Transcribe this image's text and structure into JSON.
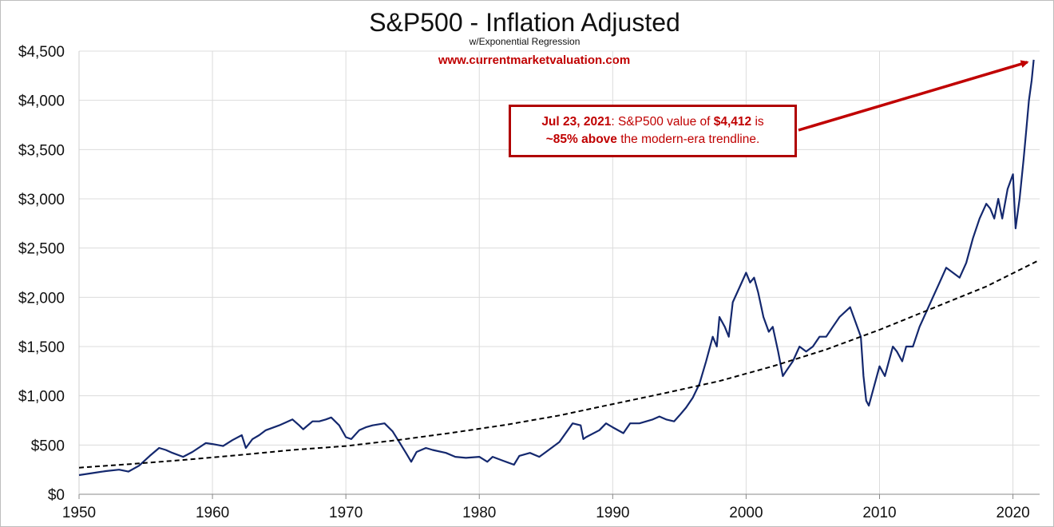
{
  "chart_data": {
    "type": "line",
    "title": "S&P500 - Inflation Adjusted",
    "subtitle": "w/Exponential Regression",
    "website": "www.currentmarketvaluation.com",
    "xlabel": "",
    "ylabel": "",
    "xlim": [
      1950,
      2022
    ],
    "ylim": [
      0,
      4500
    ],
    "x_ticks": [
      "1950",
      "1960",
      "1970",
      "1980",
      "1990",
      "2000",
      "2010",
      "2020"
    ],
    "y_ticks": [
      "$0",
      "$500",
      "$1,000",
      "$1,500",
      "$2,000",
      "$2,500",
      "$3,000",
      "$3,500",
      "$4,000",
      "$4,500"
    ],
    "grid": true,
    "series": [
      {
        "name": "S&P500 (inflation adjusted)",
        "color": "#14286e",
        "style": "solid",
        "x": [
          1950.0,
          1951.0,
          1952.0,
          1953.0,
          1953.7,
          1954.5,
          1955.3,
          1956.0,
          1956.5,
          1957.0,
          1957.8,
          1958.5,
          1959.5,
          1960.0,
          1960.8,
          1961.5,
          1962.2,
          1962.5,
          1963.0,
          1963.5,
          1964.0,
          1965.0,
          1965.5,
          1966.0,
          1966.5,
          1966.8,
          1967.5,
          1968.0,
          1968.5,
          1968.9,
          1969.5,
          1970.0,
          1970.4,
          1971.0,
          1971.5,
          1972.0,
          1972.9,
          1973.5,
          1974.0,
          1974.5,
          1974.9,
          1975.3,
          1976.0,
          1976.5,
          1977.5,
          1978.2,
          1979.0,
          1980.0,
          1980.6,
          1981.0,
          1981.8,
          1982.6,
          1983.0,
          1983.8,
          1984.5,
          1985.0,
          1986.0,
          1987.0,
          1987.6,
          1987.8,
          1988.0,
          1989.0,
          1989.5,
          1990.0,
          1990.8,
          1991.3,
          1992.0,
          1993.0,
          1993.5,
          1994.0,
          1994.6,
          1995.0,
          1995.5,
          1996.0,
          1996.5,
          1997.0,
          1997.5,
          1997.8,
          1998.0,
          1998.4,
          1998.7,
          1999.0,
          1999.5,
          2000.0,
          2000.3,
          2000.6,
          2000.9,
          2001.3,
          2001.7,
          2002.0,
          2002.4,
          2002.75,
          2003.0,
          2003.5,
          2004.0,
          2004.5,
          2005.0,
          2005.5,
          2006.0,
          2006.5,
          2007.0,
          2007.4,
          2007.8,
          2008.2,
          2008.6,
          2008.8,
          2009.0,
          2009.2,
          2009.6,
          2010.0,
          2010.4,
          2010.7,
          2011.0,
          2011.3,
          2011.7,
          2012.0,
          2012.5,
          2013.0,
          2013.5,
          2014.0,
          2014.5,
          2015.0,
          2015.5,
          2016.0,
          2016.5,
          2017.0,
          2017.5,
          2018.0,
          2018.3,
          2018.6,
          2018.9,
          2019.2,
          2019.6,
          2020.0,
          2020.2,
          2020.5,
          2020.8,
          2021.0,
          2021.2,
          2021.4,
          2021.56
        ],
        "y": [
          195,
          215,
          235,
          250,
          230,
          290,
          390,
          470,
          450,
          420,
          380,
          430,
          520,
          510,
          490,
          550,
          600,
          470,
          560,
          600,
          650,
          700,
          730,
          760,
          700,
          660,
          740,
          740,
          760,
          780,
          700,
          580,
          560,
          650,
          680,
          700,
          720,
          640,
          530,
          420,
          330,
          430,
          470,
          450,
          420,
          380,
          370,
          380,
          330,
          380,
          340,
          300,
          390,
          420,
          380,
          430,
          530,
          720,
          700,
          560,
          580,
          650,
          720,
          680,
          620,
          720,
          720,
          760,
          790,
          760,
          740,
          800,
          880,
          980,
          1120,
          1350,
          1600,
          1500,
          1800,
          1700,
          1600,
          1950,
          2100,
          2250,
          2150,
          2200,
          2050,
          1800,
          1650,
          1700,
          1450,
          1200,
          1250,
          1350,
          1500,
          1450,
          1500,
          1600,
          1600,
          1700,
          1800,
          1850,
          1900,
          1750,
          1600,
          1200,
          950,
          900,
          1100,
          1300,
          1200,
          1350,
          1500,
          1450,
          1350,
          1500,
          1500,
          1700,
          1850,
          2000,
          2150,
          2300,
          2250,
          2200,
          2350,
          2600,
          2800,
          2950,
          2900,
          2800,
          3000,
          2800,
          3100,
          3250,
          2700,
          3000,
          3400,
          3700,
          4000,
          4200,
          4412
        ]
      },
      {
        "name": "Exponential regression trendline",
        "color": "#000000",
        "style": "dashed",
        "x": [
          1950,
          1954,
          1958,
          1962,
          1966,
          1970,
          1974,
          1978,
          1982,
          1986,
          1990,
          1994,
          1998,
          2002,
          2006,
          2010,
          2014,
          2018,
          2022
        ],
        "y": [
          270,
          308,
          350,
          398,
          450,
          490,
          552,
          625,
          705,
          800,
          915,
          1030,
          1150,
          1300,
          1470,
          1670,
          1890,
          2110,
          2380
        ]
      }
    ],
    "annotation": {
      "date": "Jul 23, 2021",
      "text1": ": S&P500 value of ",
      "value": "$4,412",
      "text2": " is",
      "pct": "~85% above",
      "text3": " the modern-era trendline.",
      "arrow_color": "#c00000",
      "target_x": 2021.56,
      "target_y": 4412
    }
  }
}
